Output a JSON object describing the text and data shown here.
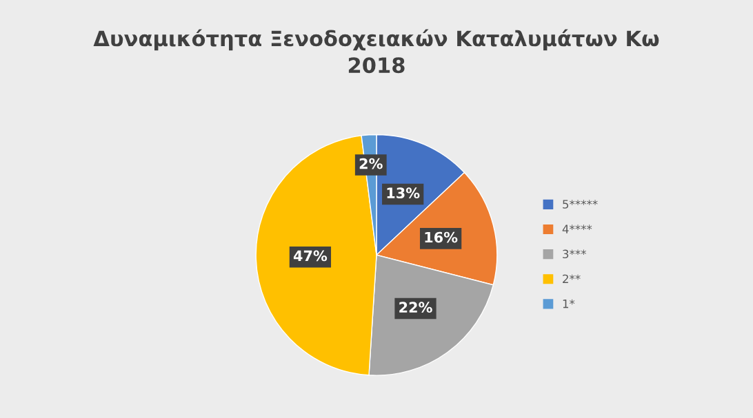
{
  "chart_data": {
    "type": "pie",
    "title": "Δυναμικότητα Ξενοδοχειακών Καταλυμάτων Κω\n2018",
    "categories": [
      "5*****",
      "4****",
      "3***",
      "2**",
      "1*"
    ],
    "values": [
      13,
      16,
      22,
      47,
      2
    ],
    "colors": [
      "#4472c4",
      "#ed7d31",
      "#a5a5a5",
      "#ffc000",
      "#5b9bd5"
    ],
    "value_labels": [
      "13%",
      "16%",
      "22%",
      "47%",
      "2%"
    ],
    "legend": "right"
  }
}
